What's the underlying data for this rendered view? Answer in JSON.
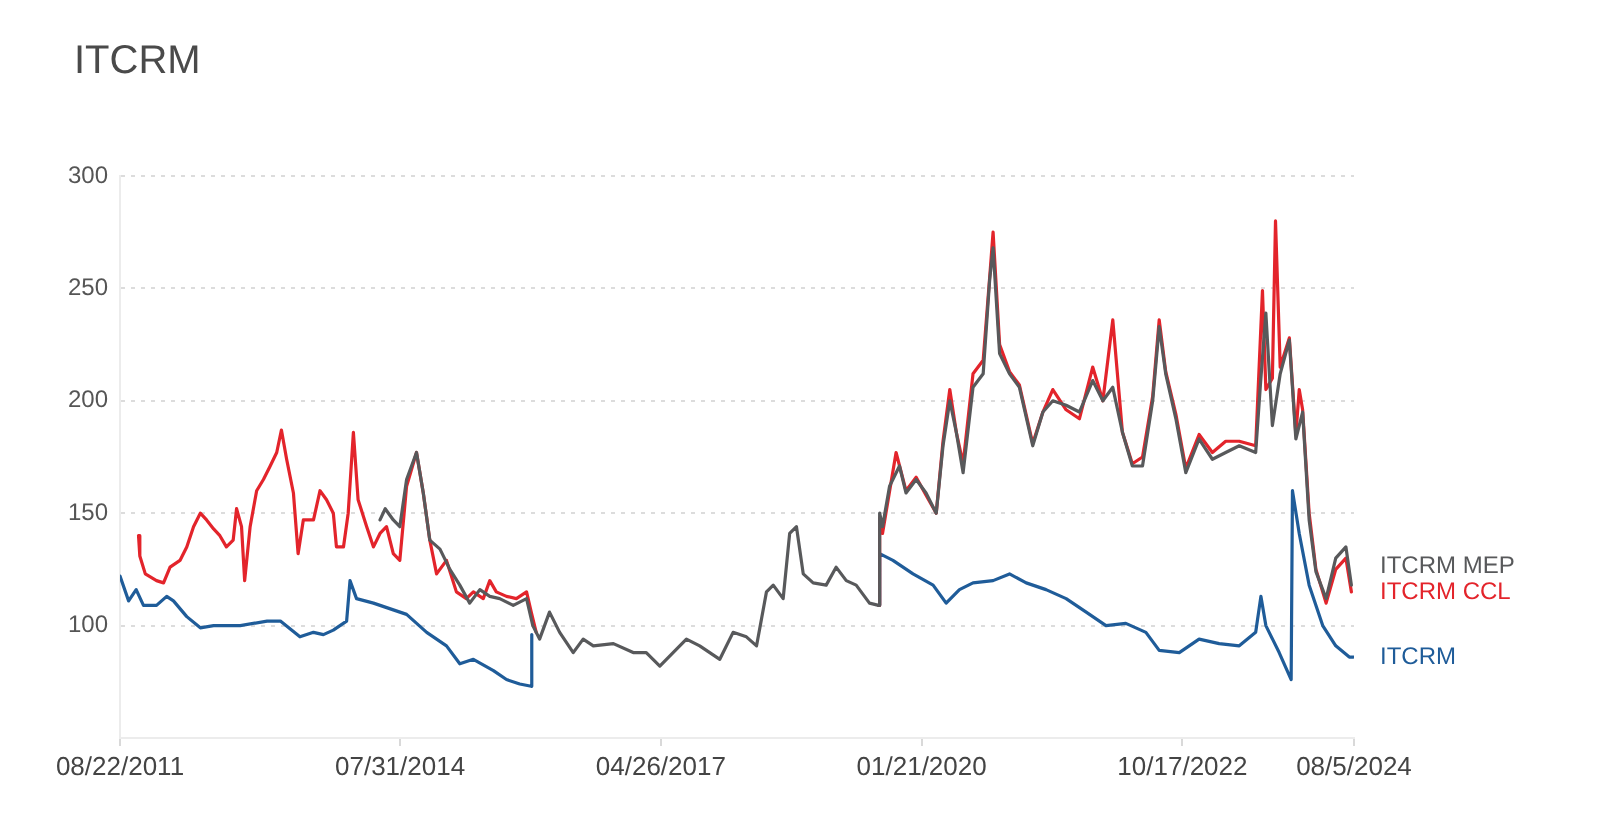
{
  "chart_data": {
    "type": "line",
    "title": "ITCRM",
    "xlim": [
      "2011-08-22",
      "2024-08-05"
    ],
    "xticks": [
      {
        "value": "2011-08-22",
        "label": "08/22/2011"
      },
      {
        "value": "2014-07-31",
        "label": "07/31/2014"
      },
      {
        "value": "2017-04-26",
        "label": "04/26/2017"
      },
      {
        "value": "2020-01-21",
        "label": "01/21/2020"
      },
      {
        "value": "2022-10-17",
        "label": "10/17/2022"
      },
      {
        "value": "2024-08-05",
        "label": "08/5/2024"
      }
    ],
    "ylim": [
      50,
      300
    ],
    "yticks": [
      100,
      150,
      200,
      250,
      300
    ],
    "grid": "y",
    "series": [
      {
        "name": "ITCRM MEP",
        "color": "#58595b",
        "x": [
          "2014-05-15",
          "2014-06-04",
          "2014-07-05",
          "2014-07-30",
          "2014-08-25",
          "2014-10-02",
          "2014-10-28",
          "2014-11-22",
          "2014-12-31",
          "2015-02-07",
          "2015-03-17",
          "2015-04-24",
          "2015-06-02",
          "2015-07-10",
          "2015-08-17",
          "2015-10-08",
          "2015-11-28",
          "2015-12-22",
          "2016-01-17",
          "2016-02-24",
          "2016-04-03",
          "2016-05-25",
          "2016-07-02",
          "2016-08-10",
          "2016-10-26",
          "2017-01-10",
          "2017-03-01",
          "2017-04-22",
          "2017-06-12",
          "2017-08-02",
          "2017-09-22",
          "2017-12-08",
          "2018-01-28",
          "2018-03-20",
          "2018-04-28",
          "2018-06-05",
          "2018-07-01",
          "2018-08-08",
          "2018-09-02",
          "2018-09-28",
          "2018-10-24",
          "2018-12-01",
          "2019-01-20",
          "2019-02-27",
          "2019-04-07",
          "2019-05-15",
          "2019-07-05",
          "2019-08-09",
          "2019-08-13",
          "2019-08-24",
          "2019-09-20",
          "2019-10-28",
          "2019-11-22",
          "2019-12-31",
          "2020-02-07",
          "2020-03-17",
          "2020-04-12",
          "2020-05-08",
          "2020-06-02",
          "2020-06-28",
          "2020-08-05",
          "2020-09-13",
          "2020-10-08",
          "2020-10-21",
          "2020-11-15",
          "2020-12-23",
          "2021-01-30",
          "2021-03-22",
          "2021-04-30",
          "2021-06-07",
          "2021-07-28",
          "2021-09-17",
          "2021-11-07",
          "2021-12-16",
          "2022-01-23",
          "2022-03-01",
          "2022-04-08",
          "2022-05-17",
          "2022-06-25",
          "2022-07-20",
          "2022-08-14",
          "2022-09-22",
          "2022-10-30",
          "2022-12-20",
          "2023-02-09",
          "2023-04-01",
          "2023-05-23",
          "2023-07-25",
          "2023-08-12",
          "2023-09-02",
          "2023-09-27",
          "2023-10-27",
          "2023-12-01",
          "2023-12-26",
          "2024-01-21",
          "2024-02-15",
          "2024-03-12",
          "2024-04-20",
          "2024-05-27",
          "2024-07-05",
          "2024-07-26"
        ],
        "values": [
          147,
          152,
          147,
          144,
          165,
          177,
          159,
          138,
          134,
          125,
          118,
          110,
          116,
          113,
          112,
          109,
          112,
          100,
          94,
          106,
          97,
          88,
          94,
          91,
          92,
          88,
          88,
          82,
          88,
          94,
          91,
          85,
          97,
          95,
          91,
          115,
          118,
          112,
          141,
          144,
          123,
          119,
          118,
          126,
          120,
          118,
          110,
          109,
          150,
          144,
          162,
          171,
          159,
          165,
          159,
          150,
          180,
          200,
          186,
          168,
          206,
          212,
          254,
          268,
          221,
          212,
          206,
          180,
          195,
          200,
          198,
          195,
          209,
          200,
          206,
          186,
          171,
          171,
          200,
          233,
          212,
          192,
          168,
          183,
          174,
          177,
          180,
          177,
          207,
          239,
          189,
          212,
          227,
          183,
          195,
          147,
          124,
          112,
          130,
          135,
          118
        ]
      },
      {
        "name": "ITCRM CCL",
        "color": "#e3242b",
        "x": [
          "2011-11-01",
          "2011-11-06",
          "2011-11-27",
          "2012-01-09",
          "2012-02-05",
          "2012-03-01",
          "2012-04-08",
          "2012-05-04",
          "2012-05-30",
          "2012-06-25",
          "2012-07-19",
          "2012-08-15",
          "2012-09-08",
          "2012-10-03",
          "2012-10-29",
          "2012-11-11",
          "2012-11-30",
          "2012-12-12",
          "2013-01-02",
          "2013-01-27",
          "2013-02-22",
          "2013-03-20",
          "2013-04-14",
          "2013-05-02",
          "2013-05-22",
          "2013-06-17",
          "2013-07-05",
          "2013-07-25",
          "2013-09-02",
          "2013-09-27",
          "2013-10-22",
          "2013-11-17",
          "2013-11-29",
          "2013-12-26",
          "2014-01-13",
          "2014-02-02",
          "2014-02-20",
          "2014-03-25",
          "2014-04-20",
          "2014-05-15",
          "2014-06-09",
          "2014-07-05",
          "2014-07-30",
          "2014-08-25",
          "2014-10-02",
          "2014-10-28",
          "2014-11-22",
          "2014-12-18",
          "2015-01-25",
          "2015-03-04",
          "2015-04-11",
          "2015-05-08",
          "2015-06-15",
          "2015-07-10",
          "2015-08-04",
          "2015-09-12",
          "2015-10-20",
          "2015-11-28",
          "2015-12-16",
          "2016-01-04",
          "2017-11-01",
          "2019-08-09",
          "2019-08-13",
          "2019-08-24",
          "2019-10-15",
          "2019-11-22",
          "2019-12-31",
          "2020-02-07",
          "2020-03-17",
          "2020-04-12",
          "2020-05-08",
          "2020-06-02",
          "2020-06-28",
          "2020-08-05",
          "2020-09-13",
          "2020-10-08",
          "2020-10-21",
          "2020-11-15",
          "2020-12-23",
          "2021-01-30",
          "2021-03-22",
          "2021-04-30",
          "2021-06-07",
          "2021-07-28",
          "2021-09-17",
          "2021-11-07",
          "2021-12-16",
          "2022-01-23",
          "2022-03-01",
          "2022-04-08",
          "2022-05-17",
          "2022-06-25",
          "2022-07-20",
          "2022-08-14",
          "2022-09-22",
          "2022-10-30",
          "2022-12-20",
          "2023-02-09",
          "2023-04-01",
          "2023-05-23",
          "2023-07-25",
          "2023-08-20",
          "2023-09-02",
          "2023-09-27",
          "2023-10-09",
          "2023-10-27",
          "2023-12-01",
          "2023-12-26",
          "2024-01-08",
          "2024-01-21",
          "2024-02-15",
          "2024-03-12",
          "2024-04-20",
          "2024-05-27",
          "2024-07-05",
          "2024-07-26"
        ],
        "values": [
          140,
          131,
          123,
          120,
          119,
          126,
          129,
          135,
          144,
          150,
          147,
          143,
          140,
          135,
          138,
          152,
          144,
          120,
          144,
          160,
          165,
          171,
          177,
          187,
          174,
          159,
          132,
          147,
          147,
          160,
          156,
          150,
          135,
          135,
          150,
          186,
          156,
          144,
          135,
          141,
          144,
          132,
          129,
          162,
          177,
          159,
          138,
          123,
          129,
          115,
          112,
          115,
          112,
          120,
          115,
          113,
          112,
          115,
          106,
          97,
          null,
          109,
          148,
          141,
          177,
          160,
          166,
          158,
          150,
          182,
          205,
          186,
          172,
          212,
          218,
          255,
          275,
          225,
          213,
          207,
          181,
          195,
          205,
          196,
          192,
          215,
          200,
          236,
          186,
          172,
          175,
          202,
          236,
          213,
          194,
          170,
          185,
          177,
          182,
          182,
          180,
          249,
          205,
          210,
          280,
          215,
          228,
          185,
          205,
          196,
          150,
          125,
          110,
          125,
          130,
          115
        ]
      },
      {
        "name": "ITCRM",
        "color": "#1f5c99",
        "x": [
          "2011-08-22",
          "2011-09-24",
          "2011-10-23",
          "2011-11-20",
          "2012-01-09",
          "2012-02-17",
          "2012-03-14",
          "2012-05-04",
          "2012-06-25",
          "2012-08-15",
          "2012-11-25",
          "2013-03-08",
          "2013-04-28",
          "2013-07-12",
          "2013-09-02",
          "2013-10-10",
          "2013-11-17",
          "2014-01-07",
          "2014-01-20",
          "2014-02-14",
          "2014-04-20",
          "2014-07-05",
          "2014-08-25",
          "2014-11-10",
          "2015-01-25",
          "2015-03-17",
          "2015-05-08",
          "2015-07-24",
          "2015-09-12",
          "2015-11-02",
          "2015-12-16",
          "2015-12-18",
          "2017-11-01",
          "2019-08-09",
          "2019-08-13",
          "2019-10-03",
          "2019-12-19",
          "2020-03-05",
          "2020-04-24",
          "2020-06-14",
          "2020-08-05",
          "2020-10-21",
          "2020-12-23",
          "2021-02-25",
          "2021-05-12",
          "2021-07-28",
          "2021-10-13",
          "2021-12-28",
          "2022-03-14",
          "2022-05-30",
          "2022-07-20",
          "2022-10-05",
          "2022-12-20",
          "2023-03-07",
          "2023-05-23",
          "2023-07-25",
          "2023-08-14",
          "2023-09-02",
          "2023-10-23",
          "2023-12-08",
          "2023-12-13",
          "2024-01-08",
          "2024-02-15",
          "2024-04-07",
          "2024-05-27",
          "2024-07-18",
          "2024-08-02"
        ],
        "values": [
          122,
          111,
          116,
          109,
          109,
          113,
          111,
          104,
          99,
          100,
          100,
          102,
          102,
          95,
          97,
          96,
          98,
          102,
          120,
          112,
          110,
          107,
          105,
          97,
          91,
          83,
          85,
          80,
          76,
          74,
          73,
          96,
          null,
          109,
          132,
          129,
          123,
          118,
          110,
          116,
          119,
          120,
          123,
          119,
          116,
          112,
          106,
          100,
          101,
          97,
          89,
          88,
          94,
          92,
          91,
          97,
          113,
          100,
          88,
          76,
          160,
          141,
          118,
          100,
          91,
          86,
          86
        ]
      }
    ]
  }
}
